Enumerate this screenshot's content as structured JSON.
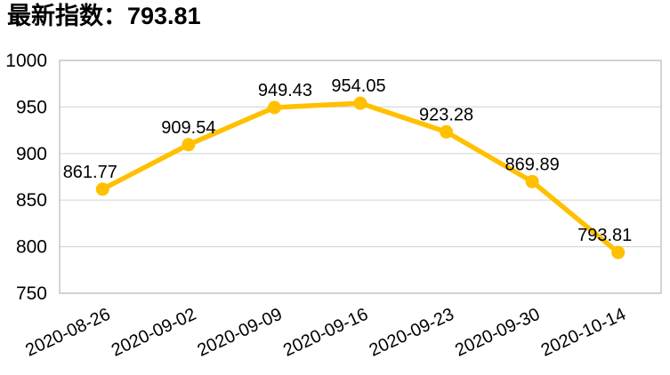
{
  "title": "最新指数：793.81",
  "chart_data": {
    "type": "line",
    "title": "最新指数：793.81",
    "categories": [
      "2020-08-26",
      "2020-09-02",
      "2020-09-09",
      "2020-09-16",
      "2020-09-23",
      "2020-09-30",
      "2020-10-14"
    ],
    "values": [
      861.77,
      909.54,
      949.43,
      954.05,
      923.28,
      869.89,
      793.81
    ],
    "data_labels": [
      "861.77",
      "909.54",
      "949.43",
      "954.05",
      "923.28",
      "869.89",
      "793.81"
    ],
    "xlabel": "",
    "ylabel": "",
    "ylim": [
      750,
      1000
    ],
    "yticks": [
      1000,
      950,
      900,
      850,
      800,
      750
    ],
    "grid": "horizontal",
    "legend_position": "none",
    "x_label_rotation_deg": -25,
    "label_dx": [
      -14,
      0,
      12,
      -2,
      0,
      0,
      -15
    ],
    "colors": {
      "line": "#FFC000",
      "marker": "#FFC000",
      "grid": "#D9D9D9",
      "border": "#C6C6C6",
      "text": "#000000",
      "background": "#FFFFFF"
    }
  }
}
